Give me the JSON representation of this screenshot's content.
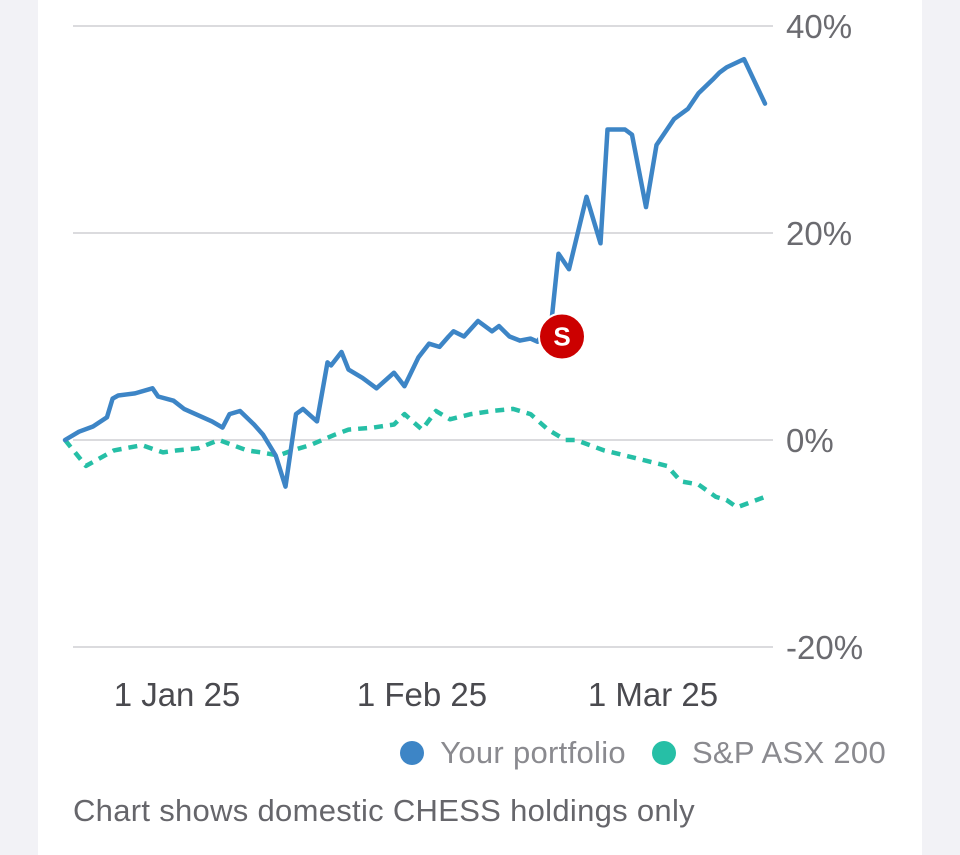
{
  "chart_data": {
    "type": "line",
    "x_ticks": [
      "1 Jan 25",
      "1 Feb 25",
      "1 Mar 25"
    ],
    "y_ticks": [
      "40%",
      "20%",
      "0%",
      "-20%"
    ],
    "y_tick_values": [
      40,
      20,
      0,
      -20
    ],
    "ylim": [
      -20,
      40
    ],
    "xlim": [
      0,
      100
    ],
    "x_tick_positions": [
      16,
      51,
      84
    ],
    "series": [
      {
        "name": "Your portfolio",
        "color": "#3d85c6",
        "style": "solid",
        "x": [
          0,
          2,
          4,
          6,
          6.8,
          7.6,
          10,
          12.5,
          13.3,
          15.5,
          17,
          19,
          21,
          22.5,
          23.5,
          25,
          27,
          28.3,
          30.1,
          31.5,
          33,
          34,
          36,
          37.5,
          38,
          39.5,
          40.5,
          42.5,
          44.5,
          47,
          48.5,
          50.5,
          52,
          53.5,
          54.8,
          55.5,
          57,
          59,
          61,
          62,
          63.5,
          65,
          66.5,
          67.5,
          69.5,
          70.5,
          72,
          74.5,
          76.5,
          77.5,
          80,
          81,
          83,
          84.5,
          86,
          87,
          89,
          90.5,
          92.5,
          93.5,
          94.5,
          97,
          100
        ],
        "values": [
          0,
          0.8,
          1.3,
          2.2,
          4,
          4.3,
          4.5,
          5,
          4.2,
          3.8,
          3,
          2.4,
          1.8,
          1.2,
          2.5,
          2.8,
          1.5,
          0.5,
          -1.5,
          -4.5,
          2.5,
          3,
          1.8,
          7.5,
          7.2,
          8.5,
          6.8,
          6,
          5,
          6.5,
          5.2,
          8,
          9.3,
          9,
          10,
          10.5,
          10,
          11.5,
          10.5,
          11,
          10,
          9.6,
          9.8,
          9.5,
          11.5,
          18,
          16.5,
          23.5,
          19,
          30,
          30,
          29.5,
          22.5,
          28.5,
          30,
          31,
          32,
          33.5,
          34.8,
          35.5,
          36,
          36.8,
          32.5
        ],
        "marker": {
          "label": "S",
          "x": 71,
          "value": 10,
          "color": "#cc0000"
        }
      },
      {
        "name": "S&P ASX 200",
        "color": "#26bfa6",
        "style": "dashed",
        "x": [
          0,
          3,
          7,
          11,
          14,
          16,
          19,
          22,
          24,
          26,
          28,
          30.5,
          32.5,
          35,
          38.5,
          40.5,
          44,
          47,
          48.5,
          51,
          53,
          55,
          58,
          61,
          64,
          66.5,
          69,
          71.5,
          73,
          75,
          77,
          80,
          83,
          86,
          88,
          90.5,
          93,
          94.5,
          96,
          98,
          100
        ],
        "values": [
          0,
          -2.5,
          -1,
          -0.5,
          -1.2,
          -1,
          -0.8,
          0,
          -0.5,
          -1,
          -1.2,
          -1.5,
          -1,
          -0.5,
          0.5,
          1,
          1.2,
          1.5,
          2.5,
          1,
          2.8,
          2,
          2.5,
          2.8,
          3,
          2.5,
          1,
          0,
          0,
          -0.5,
          -1,
          -1.5,
          -2,
          -2.5,
          -4,
          -4.3,
          -5.5,
          -5.8,
          -6.5,
          -6,
          -5.5
        ]
      }
    ],
    "legend": [
      "Your portfolio",
      "S&P ASX 200"
    ],
    "legend_position": "bottom-right",
    "grid": true
  },
  "footnote": "Chart shows domestic CHESS holdings only",
  "colors": {
    "portfolio": "#3d85c6",
    "benchmark": "#26bfa6",
    "marker": "#cc0000",
    "grid": "#cfcfd4"
  }
}
